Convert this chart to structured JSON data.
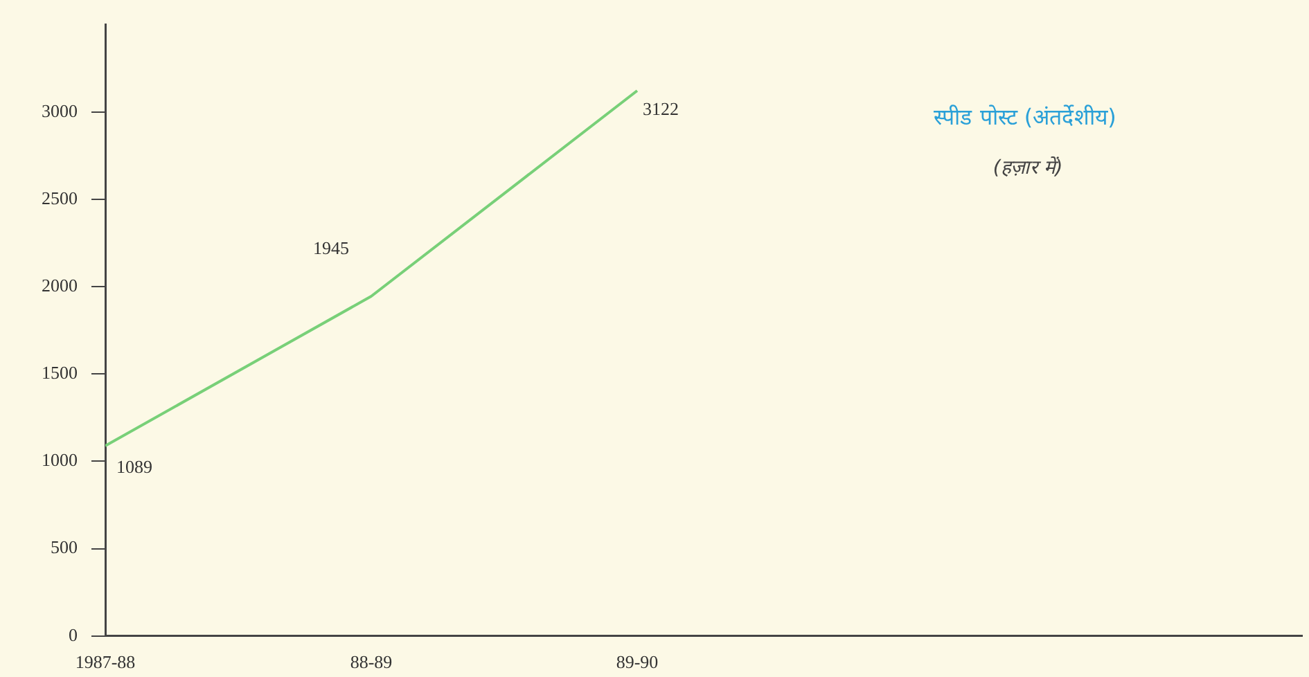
{
  "chart_data": {
    "type": "line",
    "title": "स्पीड पोस्ट (अंतर्देशीय)",
    "subtitle": "(हज़ार में)",
    "categories": [
      "1987-88",
      "88-89",
      "89-90"
    ],
    "values": [
      1089,
      1945,
      3122
    ],
    "color": "#78d078",
    "ylim": [
      0,
      3500
    ],
    "yticks": [
      0,
      500,
      1000,
      1500,
      2000,
      2500,
      3000
    ],
    "data_labels": true,
    "marker": "none",
    "grid": false,
    "legend": false
  }
}
